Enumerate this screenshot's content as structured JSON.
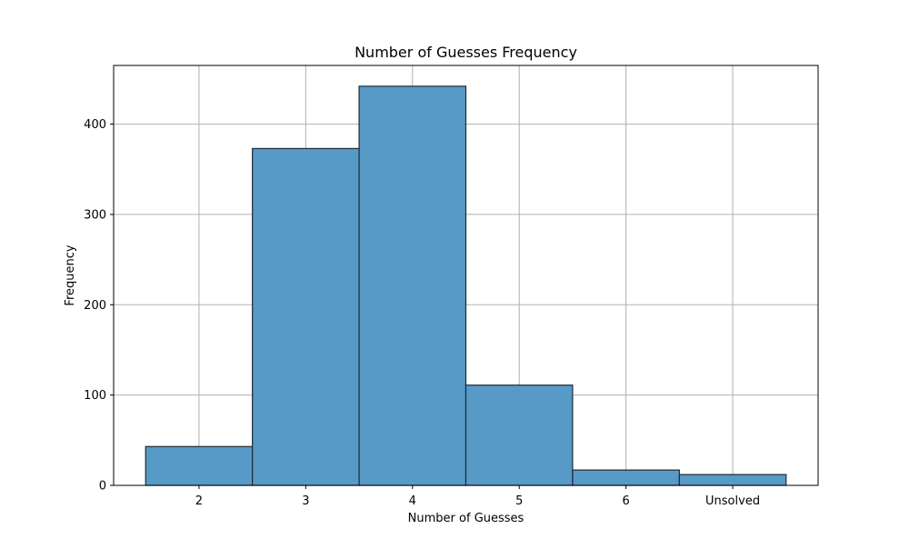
{
  "chart_data": {
    "type": "bar",
    "title": "Number of Guesses Frequency",
    "xlabel": "Number of Guesses",
    "ylabel": "Frequency",
    "categories": [
      "2",
      "3",
      "4",
      "5",
      "6",
      "Unsolved"
    ],
    "values": [
      43,
      373,
      442,
      111,
      17,
      12
    ],
    "ylim": [
      0,
      465
    ],
    "yticks": [
      0,
      100,
      200,
      300,
      400
    ],
    "grid": true,
    "bar_color": "#5799c7",
    "edge_color": "#1f2a35"
  }
}
